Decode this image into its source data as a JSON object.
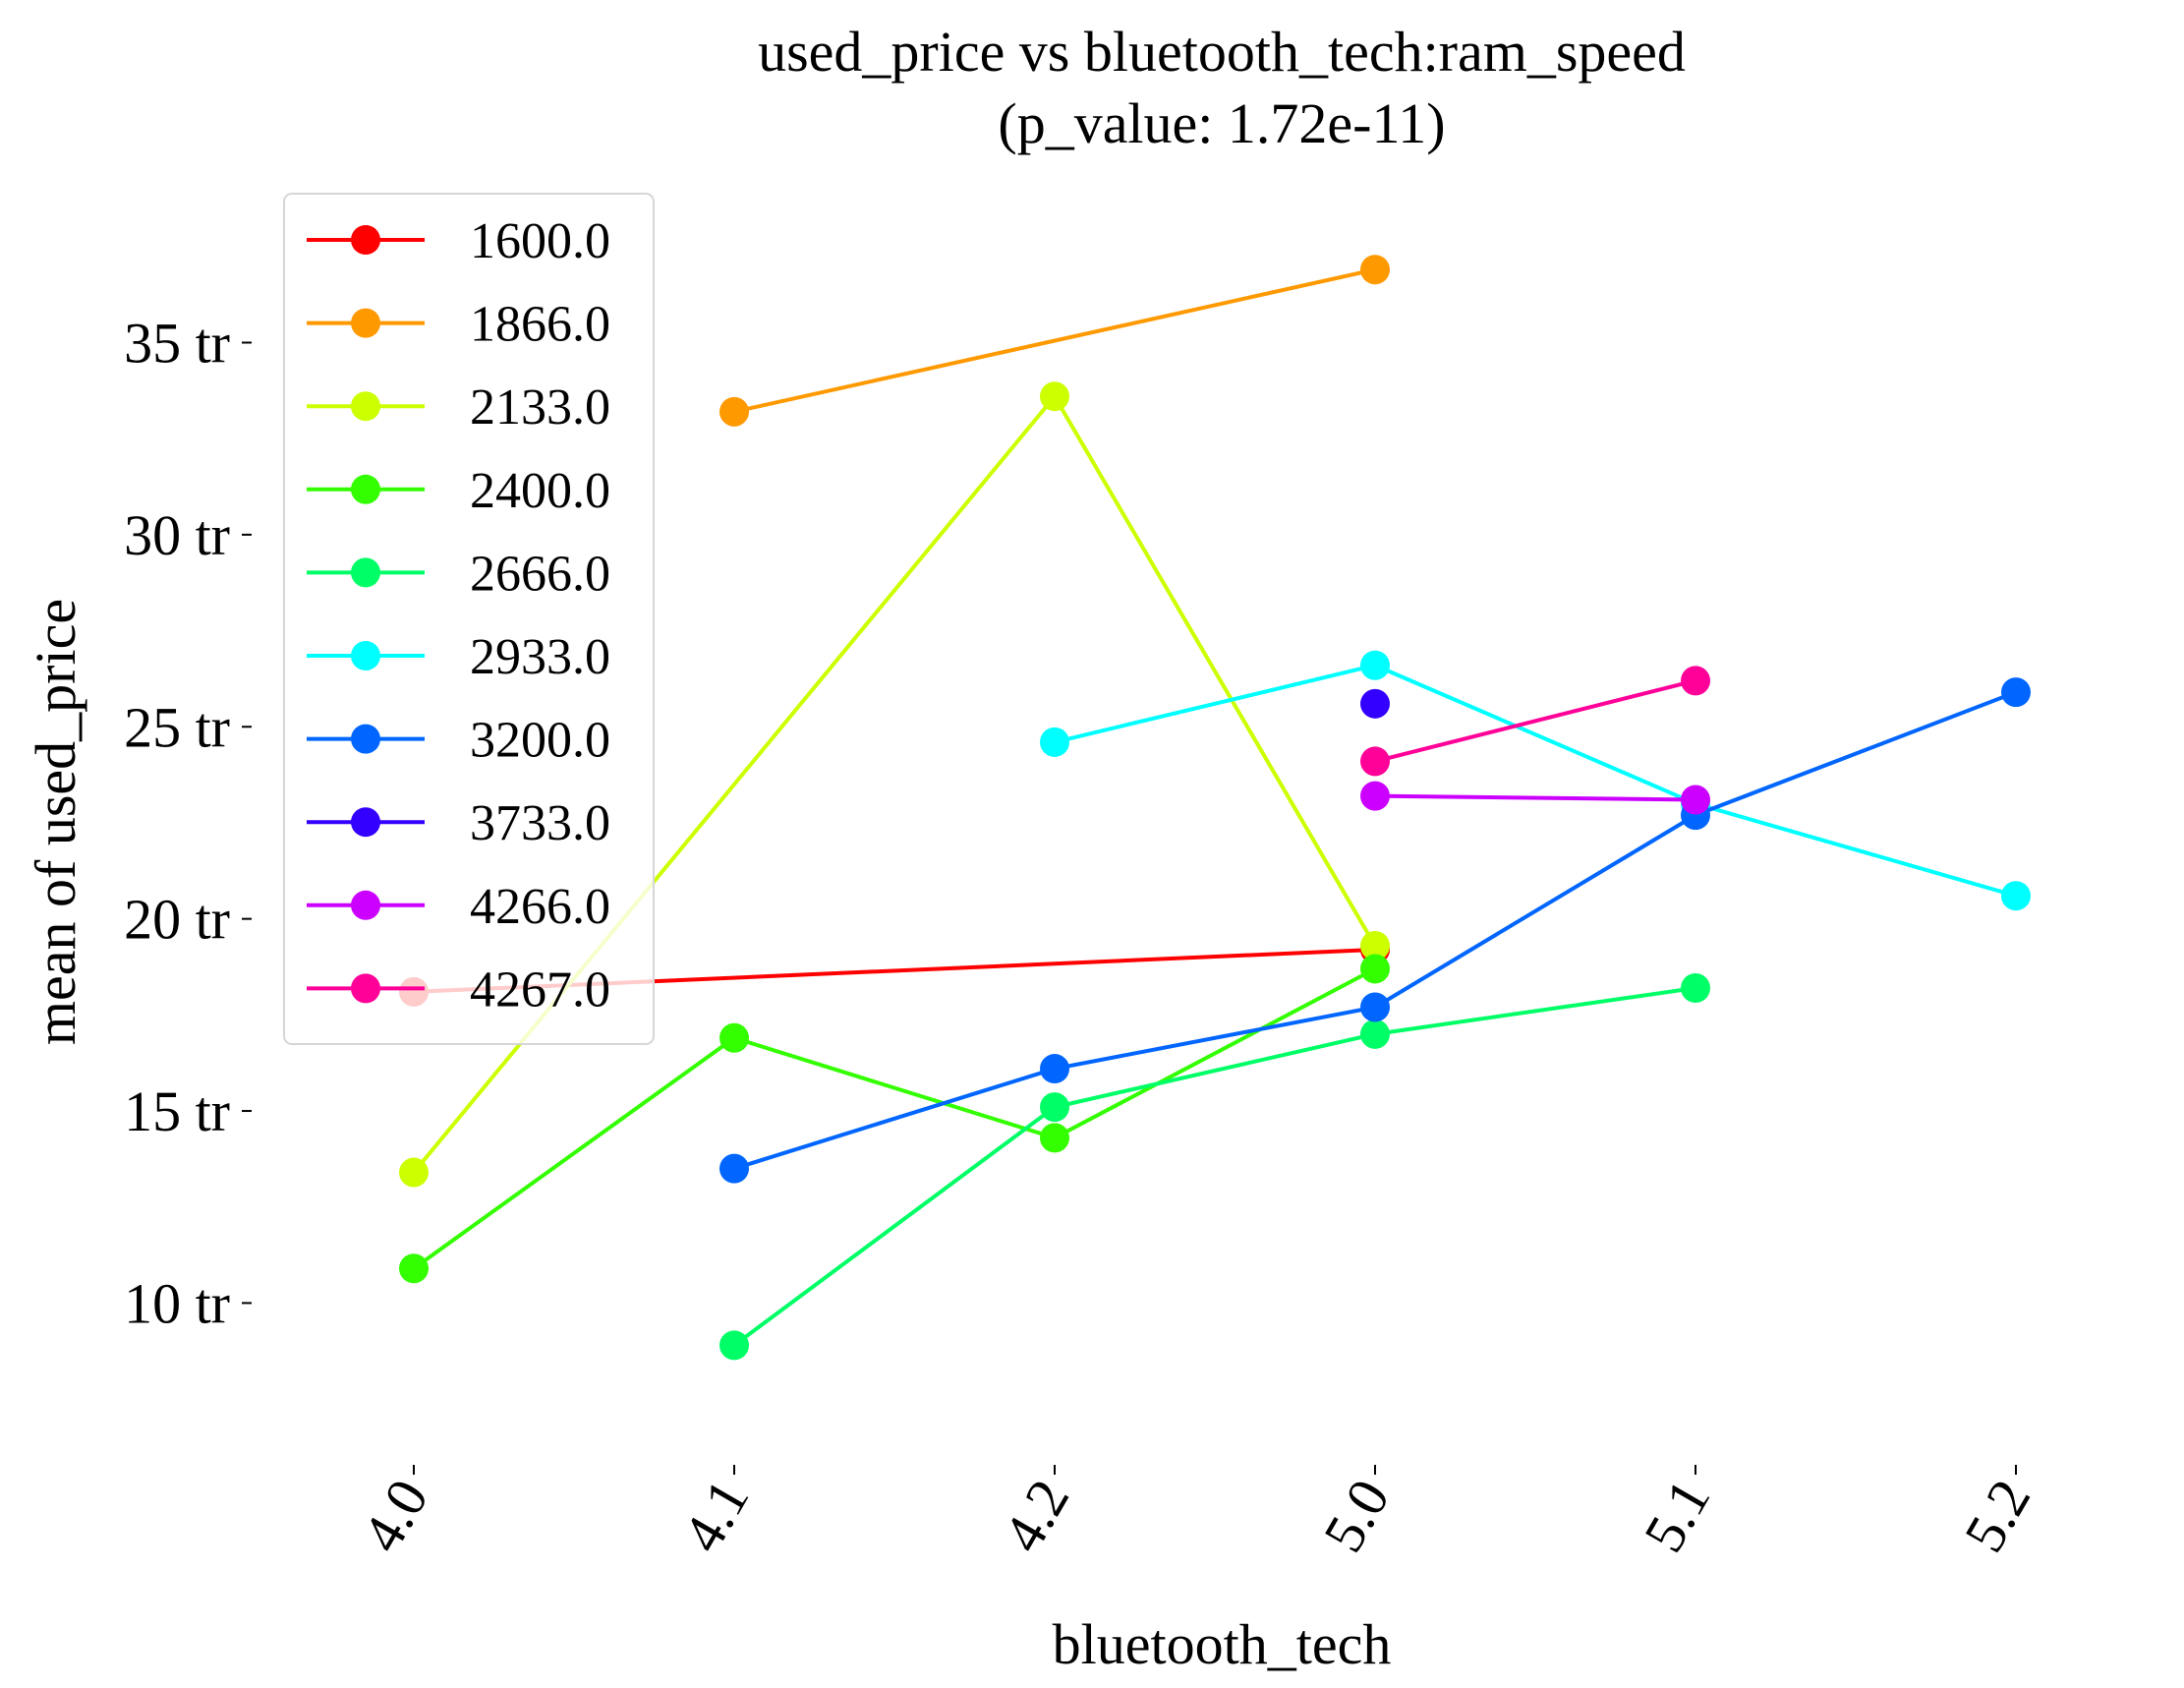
{
  "chart_data": {
    "type": "line",
    "title": "used_price vs bluetooth_tech:ram_speed",
    "subtitle": "(p_value: 1.72e-11)",
    "xlabel": "bluetooth_tech",
    "ylabel": "mean of used_price",
    "categories": [
      "4.0",
      "4.1",
      "4.2",
      "5.0",
      "5.1",
      "5.2"
    ],
    "yticks": [
      10,
      15,
      20,
      25,
      30,
      35
    ],
    "ytick_labels": [
      "10 tr",
      "15 tr",
      "20 tr",
      "25 tr",
      "30 tr",
      "35 tr"
    ],
    "ylim": [
      6.3,
      38.8
    ],
    "grid": false,
    "legend_position": "top-left",
    "series": [
      {
        "name": "1600.0",
        "color": "#ff0000",
        "values": [
          18.1,
          null,
          null,
          19.2,
          null,
          null
        ]
      },
      {
        "name": "1866.0",
        "color": "#ff9900",
        "values": [
          null,
          33.2,
          null,
          36.9,
          null,
          null
        ]
      },
      {
        "name": "2133.0",
        "color": "#ccff00",
        "values": [
          13.4,
          null,
          33.6,
          19.3,
          null,
          null
        ]
      },
      {
        "name": "2400.0",
        "color": "#33ff00",
        "values": [
          10.9,
          16.9,
          14.3,
          18.7,
          null,
          null
        ]
      },
      {
        "name": "2666.0",
        "color": "#00ff66",
        "values": [
          null,
          8.9,
          15.1,
          17.0,
          18.2,
          null
        ]
      },
      {
        "name": "2933.0",
        "color": "#00ffff",
        "values": [
          null,
          null,
          24.6,
          26.6,
          23.0,
          20.6
        ]
      },
      {
        "name": "3200.0",
        "color": "#0066ff",
        "values": [
          null,
          13.5,
          16.1,
          17.7,
          22.7,
          25.9
        ]
      },
      {
        "name": "3733.0",
        "color": "#3300ff",
        "values": [
          null,
          null,
          null,
          25.6,
          null,
          null
        ]
      },
      {
        "name": "4266.0",
        "color": "#cc00ff",
        "values": [
          null,
          null,
          null,
          23.2,
          23.1,
          null
        ]
      },
      {
        "name": "4267.0",
        "color": "#ff0099",
        "values": [
          null,
          null,
          null,
          24.1,
          26.2,
          null
        ]
      }
    ]
  }
}
